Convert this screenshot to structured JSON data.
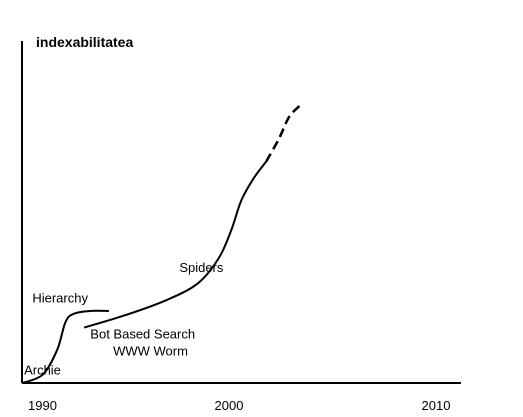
{
  "chart_data": {
    "type": "line",
    "title": "indexabilitatea",
    "xlabel": "",
    "ylabel": "",
    "xlim": [
      1990,
      2010
    ],
    "ylim": [
      0,
      100
    ],
    "x_ticks": [
      {
        "value": 1990,
        "label": "1990"
      },
      {
        "value": 2000,
        "label": "2000"
      },
      {
        "value": 2010,
        "label": "2010"
      }
    ],
    "grid": false,
    "legend": "none",
    "segments": [
      {
        "style": "solid",
        "points": [
          [
            1990.0,
            0.0
          ],
          [
            1991.0,
            3.0
          ],
          [
            1991.7,
            12.0
          ],
          [
            1992.1,
            22.0
          ],
          [
            1992.5,
            25.0
          ],
          [
            1993.3,
            26.0
          ],
          [
            1994.2,
            26.0
          ]
        ]
      },
      {
        "style": "solid",
        "points": [
          [
            1993.0,
            20.0
          ],
          [
            1995.0,
            24.5
          ],
          [
            1997.0,
            30.0
          ],
          [
            1998.5,
            36.0
          ],
          [
            1999.5,
            45.0
          ],
          [
            2000.1,
            55.0
          ],
          [
            2000.6,
            66.0
          ],
          [
            2001.2,
            74.0
          ],
          [
            2001.8,
            80.0
          ]
        ]
      },
      {
        "style": "dashed",
        "points": [
          [
            2001.8,
            80.0
          ],
          [
            2002.4,
            88.0
          ],
          [
            2002.9,
            96.0
          ],
          [
            2003.4,
            100.0
          ]
        ]
      }
    ],
    "annotations": [
      {
        "text": "Archie",
        "x": 1990.1,
        "y": 3.0
      },
      {
        "text": "Hierarchy",
        "x": 1990.5,
        "y": 29.0
      },
      {
        "text": "Bot Based Search",
        "x": 1993.3,
        "y": 16.0
      },
      {
        "text": "WWW Worm",
        "x": 1994.4,
        "y": 10.0
      },
      {
        "text": "Spiders",
        "x": 1997.6,
        "y": 40.0
      }
    ]
  }
}
